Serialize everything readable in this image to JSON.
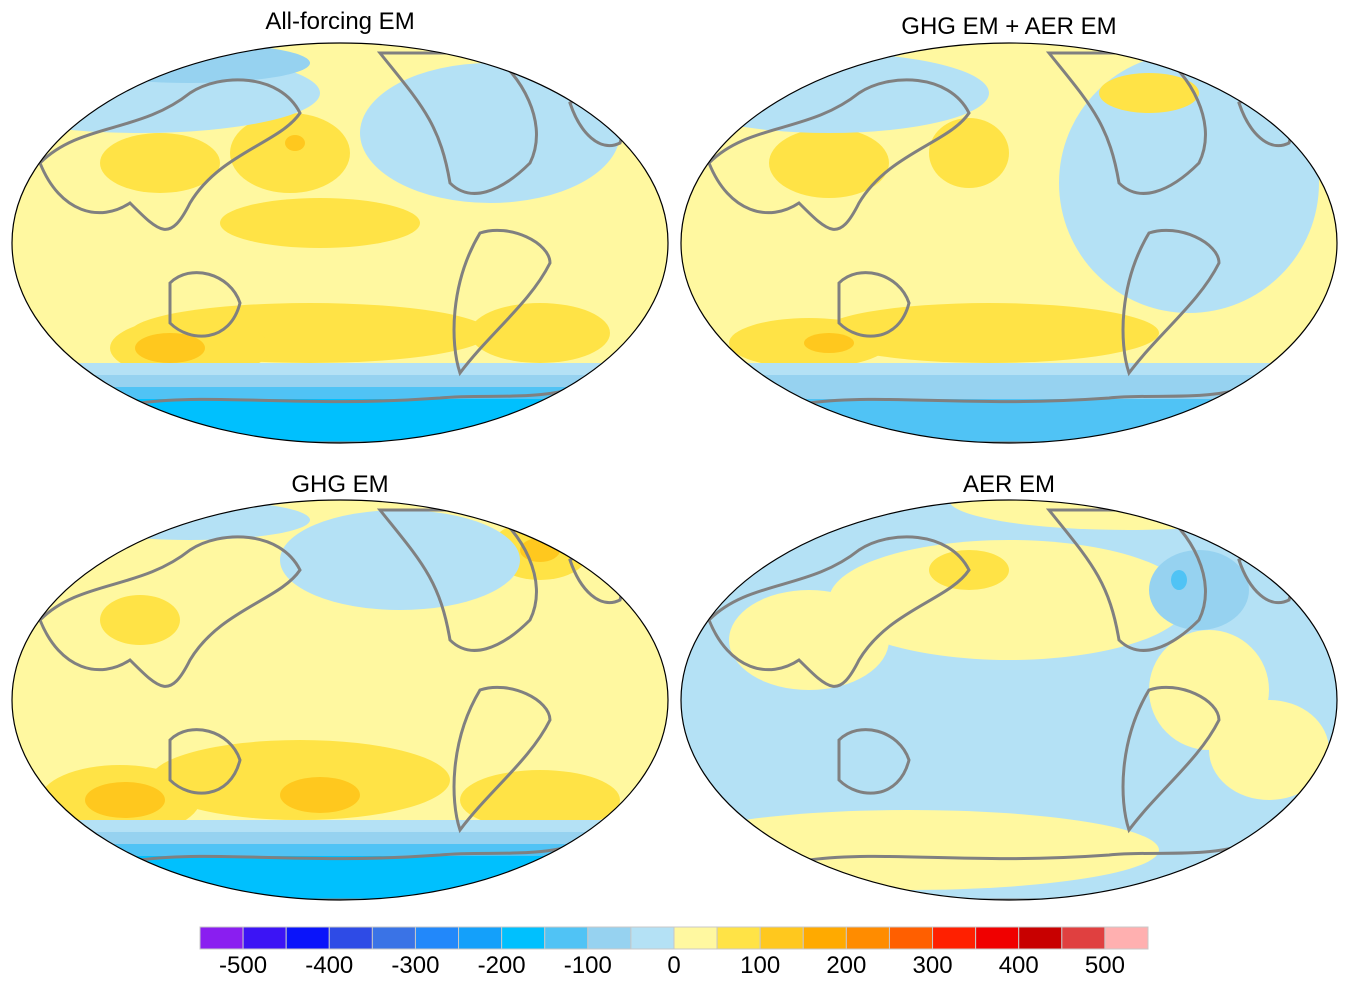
{
  "panels": [
    {
      "title": "All-forcing EM"
    },
    {
      "title": "GHG EM + AER EM"
    },
    {
      "title": "GHG EM"
    },
    {
      "title": "AER EM"
    }
  ],
  "colorbar": {
    "levels": [
      -500,
      -450,
      -400,
      -350,
      -300,
      -250,
      -200,
      -150,
      -100,
      -50,
      0,
      50,
      100,
      150,
      200,
      250,
      300,
      350,
      400,
      450,
      500
    ],
    "tick_labels": [
      "-500",
      "-400",
      "-300",
      "-200",
      "-100",
      "0",
      "100",
      "200",
      "300",
      "400",
      "500"
    ],
    "colors": [
      "#8a1ef0",
      "#3c14f5",
      "#0a14fa",
      "#2e4be6",
      "#3a73e6",
      "#2288fa",
      "#14a0fa",
      "#00c0fe",
      "#50c3f5",
      "#96d2f0",
      "#b4e1f5",
      "#fff8a0",
      "#ffe346",
      "#ffc81e",
      "#ffaa00",
      "#ff8c00",
      "#ff5f00",
      "#ff2000",
      "#f00000",
      "#c80000",
      "#e04040",
      "#ffb0b0"
    ]
  },
  "map": {
    "projection": "Robinson",
    "central_longitude": 180,
    "coastline_color": "#808080"
  }
}
